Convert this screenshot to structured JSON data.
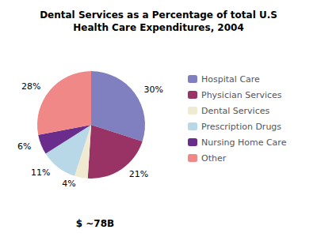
{
  "chart_data": {
    "type": "pie",
    "title": "Dental Services as a Percentage of total U.S\nHealth Care Expenditures, 2004",
    "subtitle": "$ ~78B",
    "categories": [
      "Hospital Care",
      "Physician Services",
      "Dental Services",
      "Prescription Drugs",
      "Nursing Home Care",
      "Other"
    ],
    "values": [
      30,
      21,
      4,
      11,
      6,
      28
    ],
    "value_labels": [
      "30%",
      "21%",
      "4%",
      "11%",
      "6%",
      "28%"
    ],
    "colors": [
      "#8080C0",
      "#993366",
      "#F0EAD0",
      "#B8D8E8",
      "#6B2D8B",
      "#F08888"
    ],
    "data_labels": true,
    "legend": "right"
  }
}
